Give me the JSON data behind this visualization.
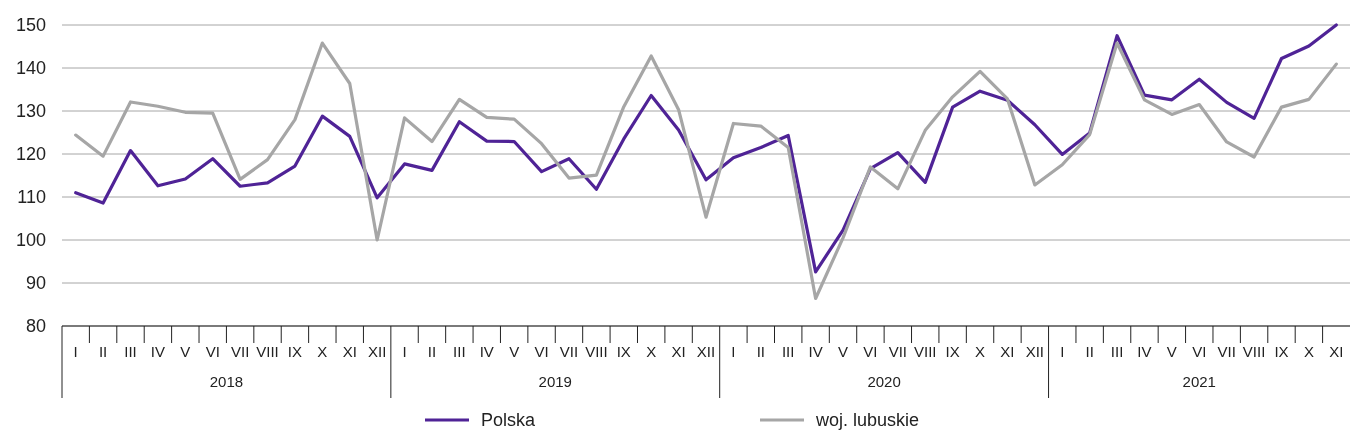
{
  "chart_data": {
    "type": "line",
    "categories": [
      "I",
      "II",
      "III",
      "IV",
      "V",
      "VI",
      "VII",
      "VIII",
      "IX",
      "X",
      "XI",
      "XII",
      "I",
      "II",
      "III",
      "IV",
      "V",
      "VI",
      "VII",
      "VIII",
      "IX",
      "X",
      "XI",
      "XII",
      "I",
      "II",
      "III",
      "IV",
      "V",
      "VI",
      "VII",
      "VIII",
      "IX",
      "X",
      "XI",
      "XII",
      "I",
      "II",
      "III",
      "IV",
      "V",
      "VI",
      "VII",
      "VIII",
      "IX",
      "X",
      "XI"
    ],
    "series": [
      {
        "name": "Polska",
        "color": "#4f2396",
        "values": [
          111,
          108.6,
          120.8,
          112.6,
          114.2,
          118.9,
          112.5,
          113.3,
          117.2,
          128.8,
          124.1,
          109.8,
          117.7,
          116.2,
          127.5,
          123.0,
          122.9,
          115.9,
          118.9,
          111.8,
          123.5,
          133.6,
          125.6,
          114.0,
          119.1,
          121.5,
          124.3,
          92.6,
          102.3,
          116.6,
          120.3,
          113.4,
          130.9,
          134.6,
          132.5,
          126.8,
          119.9,
          124.9,
          147.5,
          133.7,
          132.6,
          137.4,
          132.0,
          128.3,
          142.2,
          145.1,
          150.0
        ]
      },
      {
        "name": "woj. lubuskie",
        "color": "#a6a6a6",
        "values": [
          124.4,
          119.5,
          132.1,
          131.1,
          129.7,
          129.5,
          114.1,
          118.7,
          128.0,
          145.8,
          136.4,
          100.0,
          128.4,
          122.9,
          132.7,
          128.5,
          128.1,
          122.4,
          114.4,
          115.1,
          131.0,
          142.8,
          130.3,
          105.3,
          127.1,
          126.5,
          121.5,
          86.4,
          100.5,
          117.0,
          111.9,
          125.5,
          133.3,
          139.2,
          132.8,
          112.8,
          117.5,
          124.5,
          145.8,
          132.6,
          129.2,
          131.5,
          122.8,
          119.3,
          130.9,
          132.7,
          140.9
        ]
      }
    ],
    "ylim": [
      80,
      150
    ],
    "yticks": [
      80,
      90,
      100,
      110,
      120,
      130,
      140,
      150
    ],
    "grid": "y",
    "legend": "bottom",
    "marker": "none",
    "line_style": "solid",
    "annotations": [
      "2018",
      "2019",
      "2020",
      "2021"
    ]
  }
}
